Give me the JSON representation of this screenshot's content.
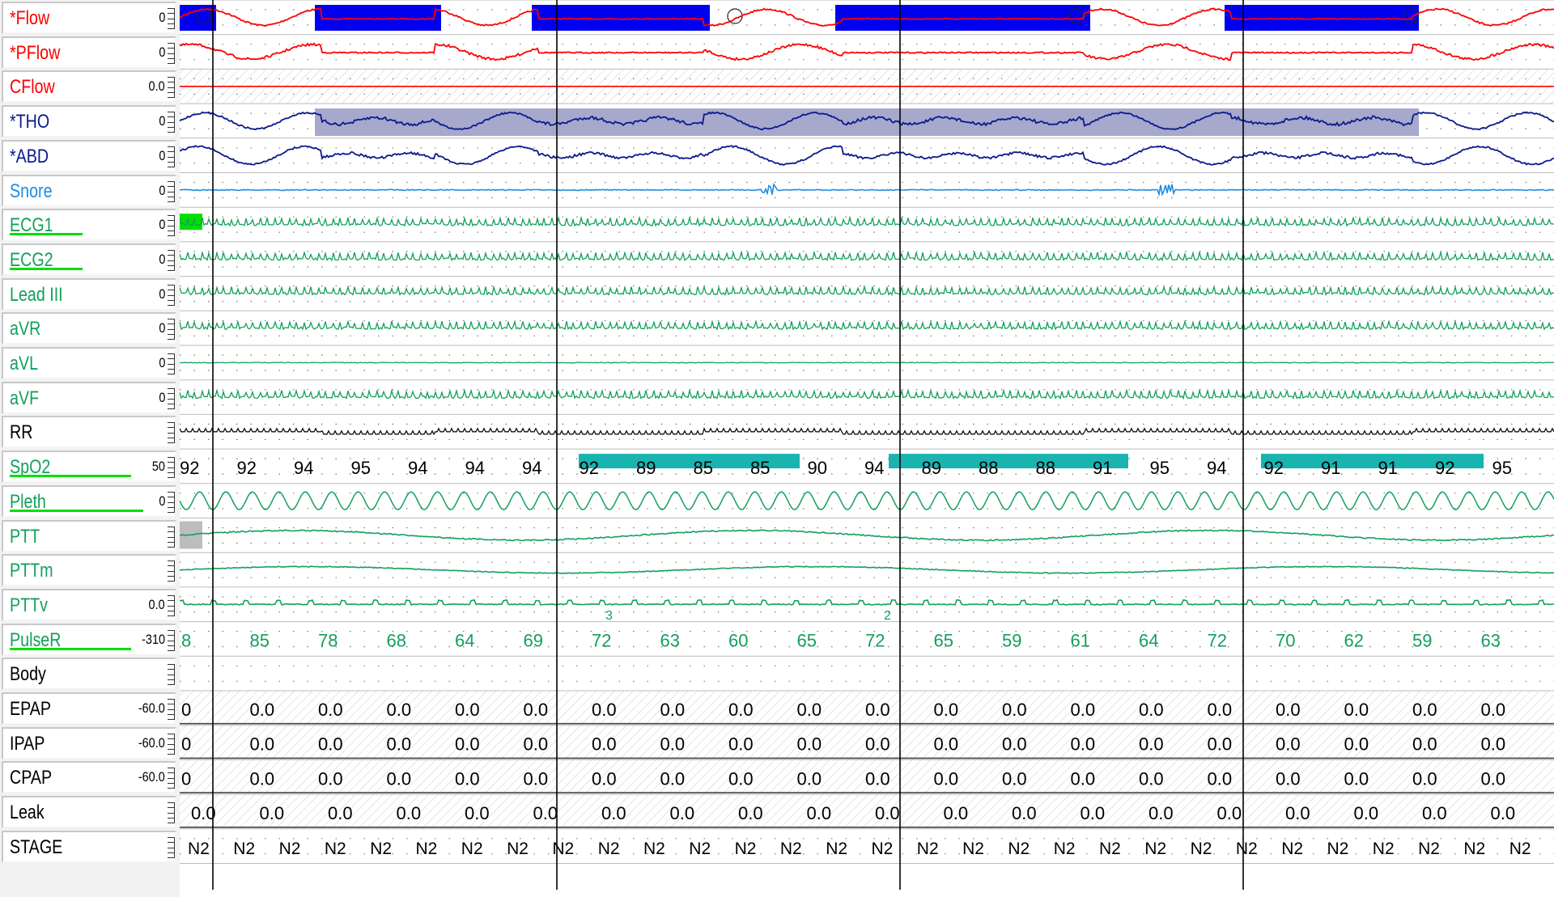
{
  "colors": {
    "flow": "#ff0000",
    "effort": "#0a1a8c",
    "snore": "#1f8ee0",
    "ecg": "#12a05c",
    "ok_bar": "#00e000",
    "event_blue": "#0000f0",
    "event_gray": "#a6a8cc",
    "desat": "#19b3b0",
    "label_black": "#000000"
  },
  "channels": [
    {
      "key": "flow",
      "name": "*Flow",
      "scale": "0",
      "color": "#ff0000"
    },
    {
      "key": "pflow",
      "name": "*PFlow",
      "scale": "0",
      "color": "#ff0000"
    },
    {
      "key": "cflow",
      "name": "CFlow",
      "scale": "0.0",
      "color": "#ff0000"
    },
    {
      "key": "tho",
      "name": "*THO",
      "scale": "0",
      "color": "#0a1a8c"
    },
    {
      "key": "abd",
      "name": "*ABD",
      "scale": "0",
      "color": "#0a1a8c"
    },
    {
      "key": "snore",
      "name": "Snore",
      "scale": "0",
      "color": "#1f8ee0"
    },
    {
      "key": "ecg1",
      "name": "ECG1",
      "scale": "0",
      "color": "#12a05c",
      "underline": "ok"
    },
    {
      "key": "ecg2",
      "name": "ECG2",
      "scale": "0",
      "color": "#12a05c",
      "underline": "ok"
    },
    {
      "key": "lead3",
      "name": "Lead III",
      "scale": "0",
      "color": "#12a05c"
    },
    {
      "key": "avr",
      "name": "aVR",
      "scale": "0",
      "color": "#12a05c"
    },
    {
      "key": "avl",
      "name": "aVL",
      "scale": "0",
      "color": "#12a05c"
    },
    {
      "key": "avf",
      "name": "aVF",
      "scale": "0",
      "color": "#12a05c"
    },
    {
      "key": "rr",
      "name": "RR",
      "scale": "",
      "color": "#000000"
    },
    {
      "key": "spo2",
      "name": "SpO2",
      "scale": "50",
      "color": "#12a05c",
      "underline": "ok"
    },
    {
      "key": "pleth",
      "name": "Pleth",
      "scale": "0",
      "color": "#12a05c",
      "underline": "ok"
    },
    {
      "key": "ptt",
      "name": "PTT",
      "scale": "",
      "color": "#12a05c"
    },
    {
      "key": "pttm",
      "name": "PTTm",
      "scale": "",
      "color": "#12a05c"
    },
    {
      "key": "pttv",
      "name": "PTTv",
      "scale": "0.0",
      "color": "#12a05c"
    },
    {
      "key": "pulser",
      "name": "PulseR",
      "scale": "-310",
      "color": "#12a05c",
      "underline": "ok"
    },
    {
      "key": "body",
      "name": "Body",
      "scale": "",
      "color": "#000000"
    },
    {
      "key": "epap",
      "name": "EPAP",
      "scale": "-60.0",
      "color": "#000000"
    },
    {
      "key": "ipap",
      "name": "IPAP",
      "scale": "-60.0",
      "color": "#000000"
    },
    {
      "key": "cpap",
      "name": "CPAP",
      "scale": "-60.0",
      "color": "#000000"
    },
    {
      "key": "leak",
      "name": "Leak",
      "scale": "",
      "color": "#000000"
    },
    {
      "key": "stage",
      "name": "STAGE",
      "scale": "",
      "color": "#000000"
    }
  ],
  "spo2": {
    "values": [
      "92",
      "92",
      "94",
      "95",
      "94",
      "94",
      "94",
      "92",
      "89",
      "85",
      "85",
      "90",
      "94",
      "89",
      "88",
      "88",
      "91",
      "95",
      "94",
      "92",
      "91",
      "91",
      "92",
      "95"
    ]
  },
  "pulse": {
    "values": [
      "8",
      "85",
      "78",
      "68",
      "64",
      "69",
      "72",
      "63",
      "60",
      "65",
      "72",
      "65",
      "59",
      "61",
      "64",
      "72",
      "70",
      "62",
      "59",
      "63"
    ]
  },
  "pttv_markers": [
    "3",
    "2"
  ],
  "pressure": {
    "epap": [
      "0",
      "0.0",
      "0.0",
      "0.0",
      "0.0",
      "0.0",
      "0.0",
      "0.0",
      "0.0",
      "0.0",
      "0.0",
      "0.0",
      "0.0",
      "0.0",
      "0.0",
      "0.0",
      "0.0",
      "0.0",
      "0.0",
      "0.0"
    ],
    "ipap": [
      "0",
      "0.0",
      "0.0",
      "0.0",
      "0.0",
      "0.0",
      "0.0",
      "0.0",
      "0.0",
      "0.0",
      "0.0",
      "0.0",
      "0.0",
      "0.0",
      "0.0",
      "0.0",
      "0.0",
      "0.0",
      "0.0",
      "0.0"
    ],
    "cpap": [
      "0",
      "0.0",
      "0.0",
      "0.0",
      "0.0",
      "0.0",
      "0.0",
      "0.0",
      "0.0",
      "0.0",
      "0.0",
      "0.0",
      "0.0",
      "0.0",
      "0.0",
      "0.0",
      "0.0",
      "0.0",
      "0.0",
      "0.0"
    ],
    "leak": [
      "0.0",
      "0.0",
      "0.0",
      "0.0",
      "0.0",
      "0.0",
      "0.0",
      "0.0",
      "0.0",
      "0.0",
      "0.0",
      "0.0",
      "0.0",
      "0.0",
      "0.0",
      "0.0",
      "0.0",
      "0.0",
      "0.0",
      "0.0"
    ]
  },
  "stage": {
    "values": [
      "N2",
      "N2",
      "N2",
      "N2",
      "N2",
      "N2",
      "N2",
      "N2",
      "N2",
      "N2",
      "N2",
      "N2",
      "N2",
      "N2",
      "N2",
      "N2",
      "N2",
      "N2",
      "N2",
      "N2",
      "N2",
      "N2",
      "N2",
      "N2",
      "N2",
      "N2",
      "N2",
      "N2",
      "N2",
      "N2",
      "N2",
      "N2"
    ]
  }
}
